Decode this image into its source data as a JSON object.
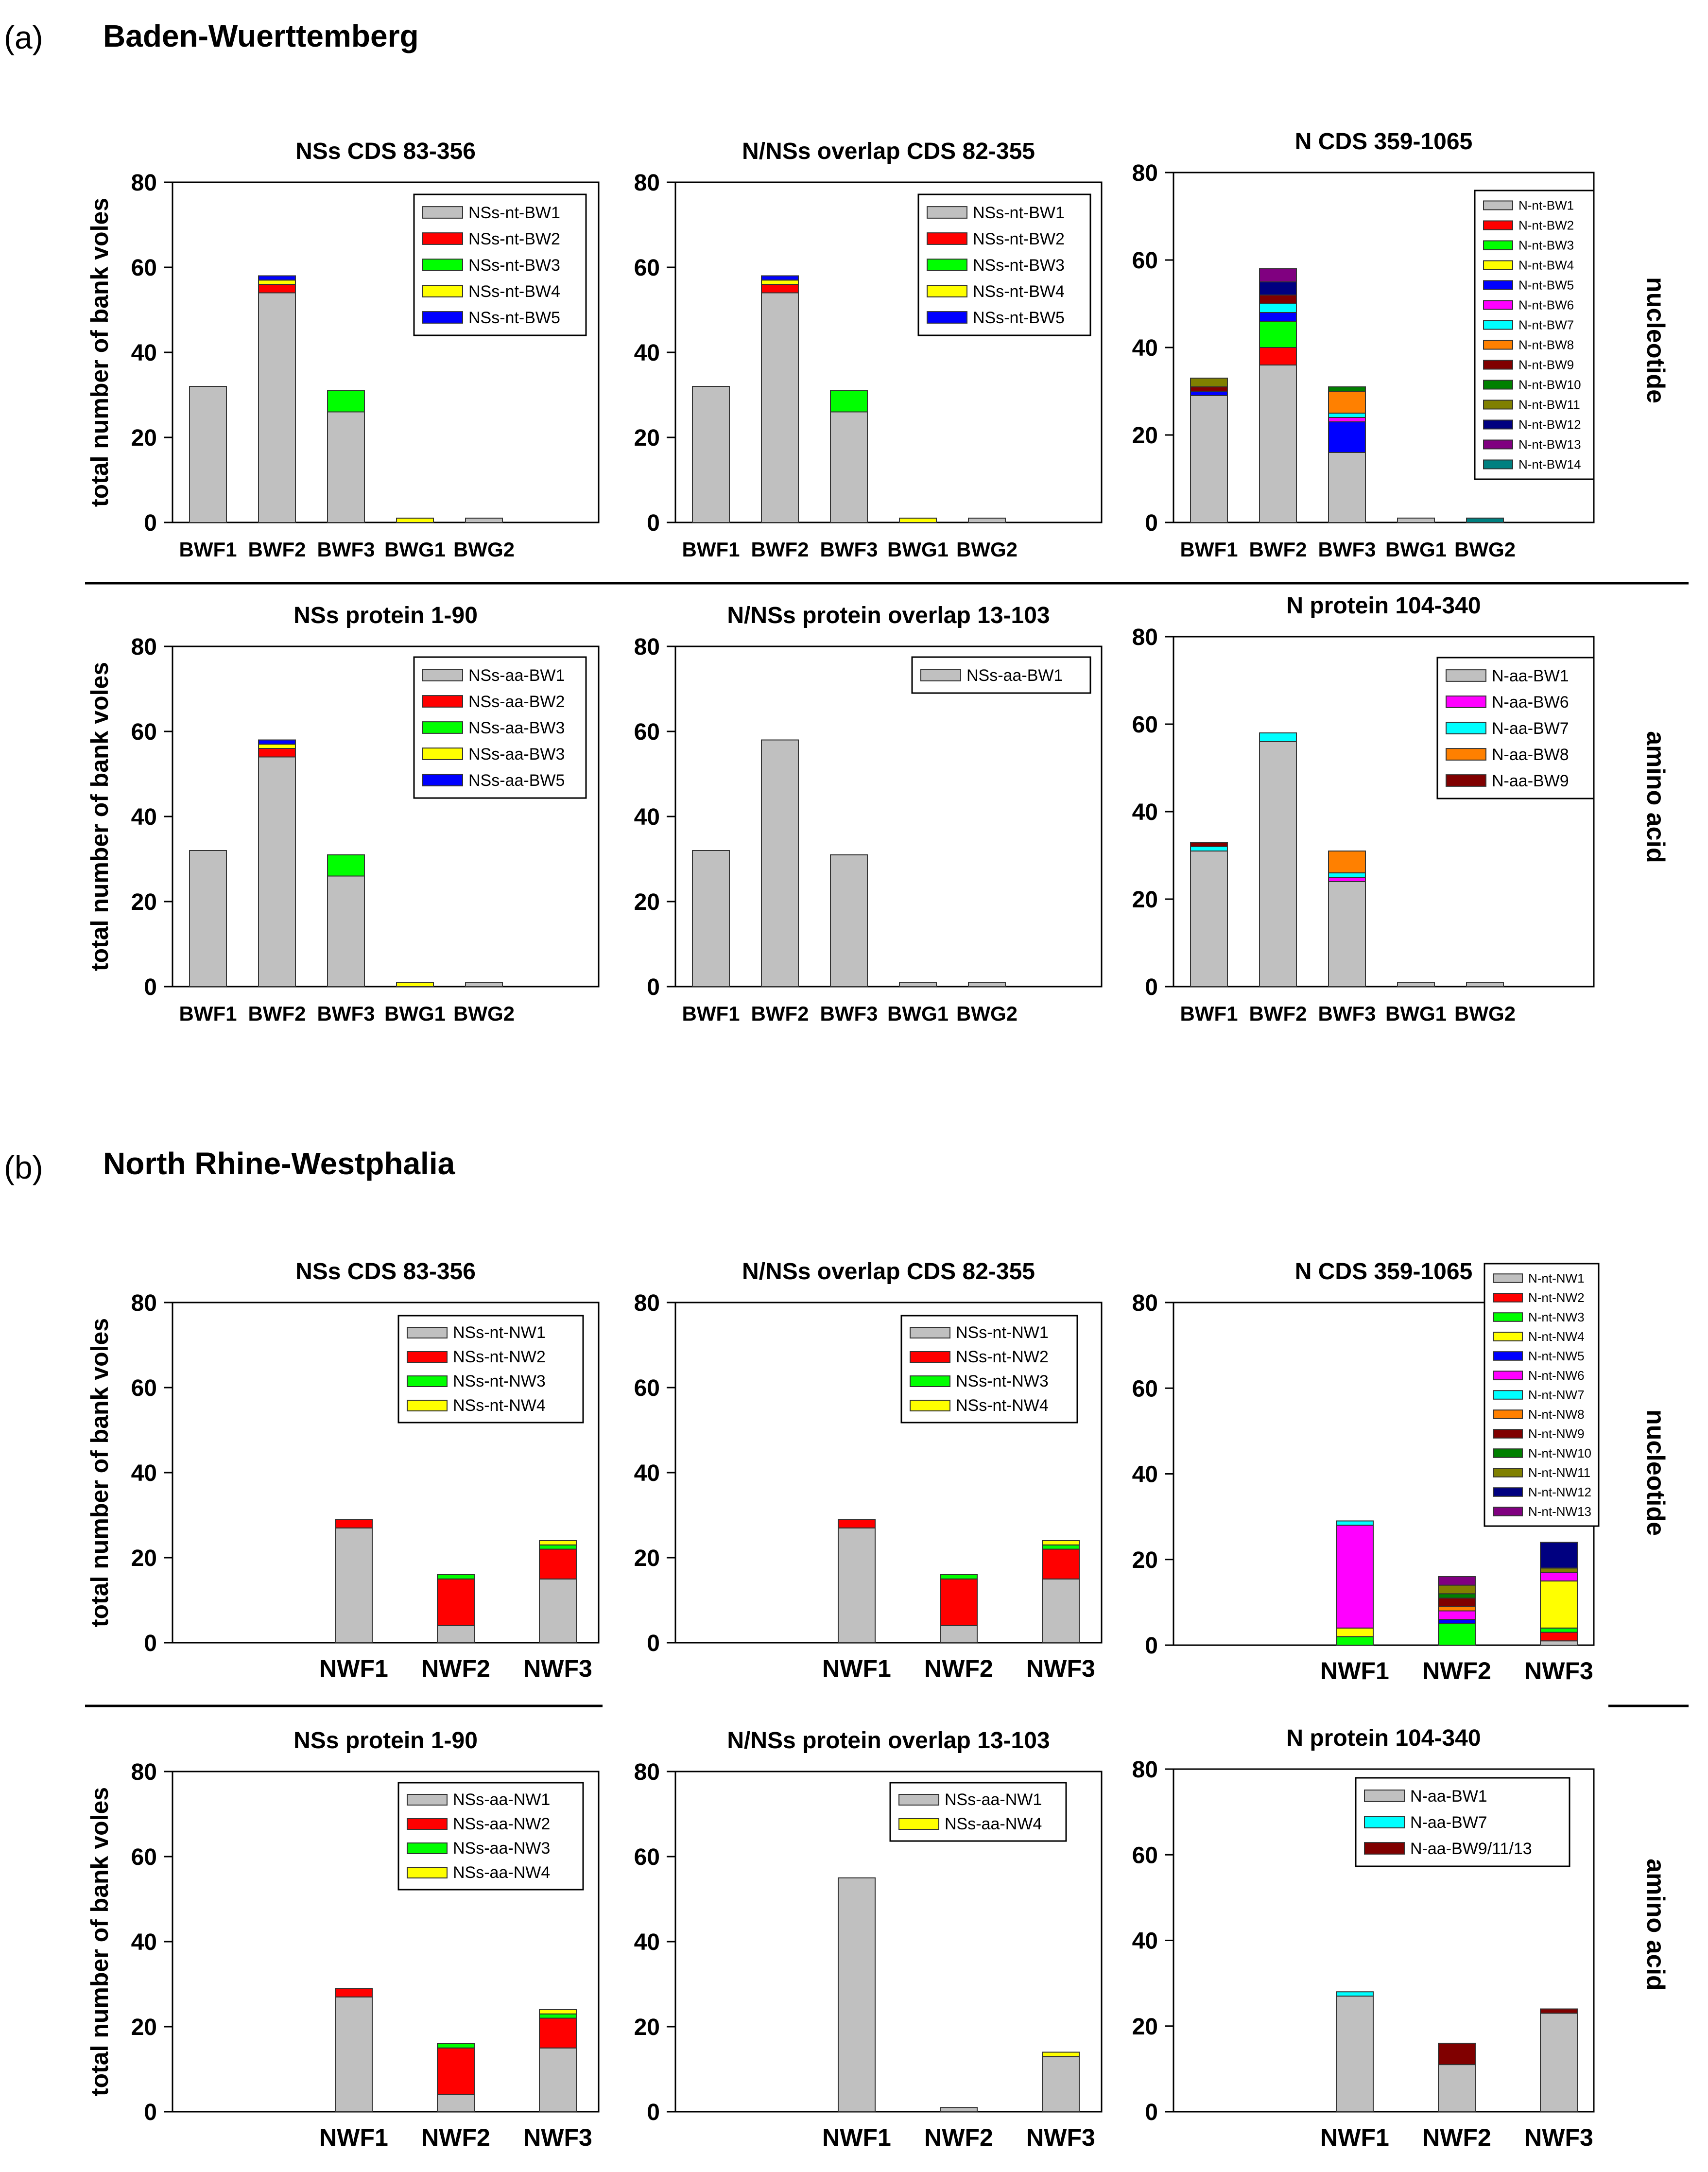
{
  "panels": [
    {
      "label": "(a)",
      "region": "Baden-Wuerttemberg"
    },
    {
      "label": "(b)",
      "region": "North Rhine-Westphalia"
    }
  ],
  "row_labels": [
    "nucleotide",
    "amino acid",
    "nucleotide",
    "amino acid"
  ],
  "y_axis_label": "total number of bank voles",
  "colors": {
    "grey": "#c0c0c0",
    "red": "#ff0000",
    "green": "#00ff00",
    "yellow": "#ffff00",
    "blue": "#0000ff",
    "magenta": "#ff00ff",
    "cyan": "#00ffff",
    "orange": "#ff8000",
    "darkred": "#800000",
    "darkgreen": "#008000",
    "olive": "#808000",
    "navy": "#000080",
    "purple": "#800080",
    "teal": "#008080"
  },
  "chart_data": [
    {
      "type": "bar",
      "stacked": true,
      "title": "NSs CDS 83-356",
      "ylabel": "total number of bank voles",
      "ylim": [
        0,
        80
      ],
      "yticks": [
        0,
        20,
        40,
        60,
        80
      ],
      "legend_position": "top-right",
      "categories": [
        "BWF1",
        "BWF2",
        "BWF3",
        "BWG1",
        "BWG2"
      ],
      "series": [
        {
          "name": "NSs-nt-BW1",
          "color": "grey",
          "values": [
            32,
            54,
            26,
            0,
            1
          ]
        },
        {
          "name": "NSs-nt-BW2",
          "color": "red",
          "values": [
            0,
            2,
            0,
            0,
            0
          ]
        },
        {
          "name": "NSs-nt-BW3",
          "color": "green",
          "values": [
            0,
            0,
            5,
            0,
            0
          ]
        },
        {
          "name": "NSs-nt-BW4",
          "color": "yellow",
          "values": [
            0,
            1,
            0,
            1,
            0
          ]
        },
        {
          "name": "NSs-nt-BW5",
          "color": "blue",
          "values": [
            0,
            1,
            0,
            0,
            0
          ]
        }
      ]
    },
    {
      "type": "bar",
      "stacked": true,
      "title": "N/NSs overlap CDS 82-355",
      "ylabel": "",
      "ylim": [
        0,
        80
      ],
      "yticks": [
        0,
        20,
        40,
        60,
        80
      ],
      "legend_position": "top-right",
      "categories": [
        "BWF1",
        "BWF2",
        "BWF3",
        "BWG1",
        "BWG2"
      ],
      "series": [
        {
          "name": "NSs-nt-BW1",
          "color": "grey",
          "values": [
            32,
            54,
            26,
            0,
            1
          ]
        },
        {
          "name": "NSs-nt-BW2",
          "color": "red",
          "values": [
            0,
            2,
            0,
            0,
            0
          ]
        },
        {
          "name": "NSs-nt-BW3",
          "color": "green",
          "values": [
            0,
            0,
            5,
            0,
            0
          ]
        },
        {
          "name": "NSs-nt-BW4",
          "color": "yellow",
          "values": [
            0,
            1,
            0,
            1,
            0
          ]
        },
        {
          "name": "NSs-nt-BW5",
          "color": "blue",
          "values": [
            0,
            1,
            0,
            0,
            0
          ]
        }
      ]
    },
    {
      "type": "bar",
      "stacked": true,
      "title": "N CDS 359-1065",
      "ylabel": "",
      "ylim": [
        0,
        80
      ],
      "yticks": [
        0,
        20,
        40,
        60,
        80
      ],
      "legend_position": "top-right",
      "categories": [
        "BWF1",
        "BWF2",
        "BWF3",
        "BWG1",
        "BWG2"
      ],
      "series": [
        {
          "name": "N-nt-BW1",
          "color": "grey",
          "values": [
            29,
            36,
            16,
            1,
            0
          ]
        },
        {
          "name": "N-nt-BW2",
          "color": "red",
          "values": [
            0,
            4,
            0,
            0,
            0
          ]
        },
        {
          "name": "N-nt-BW3",
          "color": "green",
          "values": [
            0,
            6,
            0,
            0,
            0
          ]
        },
        {
          "name": "N-nt-BW4",
          "color": "yellow",
          "values": [
            0,
            0,
            0,
            0,
            0
          ]
        },
        {
          "name": "N-nt-BW5",
          "color": "blue",
          "values": [
            1,
            2,
            7,
            0,
            0
          ]
        },
        {
          "name": "N-nt-BW6",
          "color": "magenta",
          "values": [
            0,
            0,
            1,
            0,
            0
          ]
        },
        {
          "name": "N-nt-BW7",
          "color": "cyan",
          "values": [
            0,
            2,
            1,
            0,
            0
          ]
        },
        {
          "name": "N-nt-BW8",
          "color": "orange",
          "values": [
            0,
            0,
            5,
            0,
            0
          ]
        },
        {
          "name": "N-nt-BW9",
          "color": "darkred",
          "values": [
            1,
            2,
            0,
            0,
            0
          ]
        },
        {
          "name": "N-nt-BW10",
          "color": "darkgreen",
          "values": [
            0,
            0,
            1,
            0,
            0
          ]
        },
        {
          "name": "N-nt-BW11",
          "color": "olive",
          "values": [
            2,
            0,
            0,
            0,
            0
          ]
        },
        {
          "name": "N-nt-BW12",
          "color": "navy",
          "values": [
            0,
            3,
            0,
            0,
            0
          ]
        },
        {
          "name": "N-nt-BW13",
          "color": "purple",
          "values": [
            0,
            3,
            0,
            0,
            0
          ]
        },
        {
          "name": "N-nt-BW14",
          "color": "teal",
          "values": [
            0,
            0,
            0,
            0,
            1
          ]
        }
      ]
    },
    {
      "type": "bar",
      "stacked": true,
      "title": "NSs protein 1-90",
      "ylabel": "total number of bank voles",
      "ylim": [
        0,
        80
      ],
      "yticks": [
        0,
        20,
        40,
        60,
        80
      ],
      "legend_position": "top-right",
      "categories": [
        "BWF1",
        "BWF2",
        "BWF3",
        "BWG1",
        "BWG2"
      ],
      "series": [
        {
          "name": "NSs-aa-BW1",
          "color": "grey",
          "values": [
            32,
            54,
            26,
            0,
            1
          ]
        },
        {
          "name": "NSs-aa-BW2",
          "color": "red",
          "values": [
            0,
            2,
            0,
            0,
            0
          ]
        },
        {
          "name": "NSs-aa-BW3",
          "color": "green",
          "values": [
            0,
            0,
            5,
            0,
            0
          ]
        },
        {
          "name": "NSs-aa-BW3",
          "color": "yellow",
          "values": [
            0,
            1,
            0,
            1,
            0
          ]
        },
        {
          "name": "NSs-aa-BW5",
          "color": "blue",
          "values": [
            0,
            1,
            0,
            0,
            0
          ]
        }
      ]
    },
    {
      "type": "bar",
      "stacked": true,
      "title": "N/NSs protein overlap 13-103",
      "ylabel": "",
      "ylim": [
        0,
        80
      ],
      "yticks": [
        0,
        20,
        40,
        60,
        80
      ],
      "legend_position": "top-right",
      "categories": [
        "BWF1",
        "BWF2",
        "BWF3",
        "BWG1",
        "BWG2"
      ],
      "series": [
        {
          "name": "NSs-aa-BW1",
          "color": "grey",
          "values": [
            32,
            58,
            31,
            1,
            1
          ]
        }
      ]
    },
    {
      "type": "bar",
      "stacked": true,
      "title": "N protein 104-340",
      "ylabel": "",
      "ylim": [
        0,
        80
      ],
      "yticks": [
        0,
        20,
        40,
        60,
        80
      ],
      "legend_position": "top-right",
      "categories": [
        "BWF1",
        "BWF2",
        "BWF3",
        "BWG1",
        "BWG2"
      ],
      "series": [
        {
          "name": "N-aa-BW1",
          "color": "grey",
          "values": [
            31,
            56,
            24,
            1,
            1
          ]
        },
        {
          "name": "N-aa-BW6",
          "color": "magenta",
          "values": [
            0,
            0,
            1,
            0,
            0
          ]
        },
        {
          "name": "N-aa-BW7",
          "color": "cyan",
          "values": [
            1,
            2,
            1,
            0,
            0
          ]
        },
        {
          "name": "N-aa-BW8",
          "color": "orange",
          "values": [
            0,
            0,
            5,
            0,
            0
          ]
        },
        {
          "name": "N-aa-BW9",
          "color": "darkred",
          "values": [
            1,
            0,
            0,
            0,
            0
          ]
        }
      ]
    },
    {
      "type": "bar",
      "stacked": true,
      "title": "NSs CDS 83-356",
      "ylabel": "total number of bank voles",
      "ylim": [
        0,
        80
      ],
      "yticks": [
        0,
        20,
        40,
        60,
        80
      ],
      "legend_position": "top-right",
      "categories": [
        "NWF1",
        "NWF2",
        "NWF3"
      ],
      "series": [
        {
          "name": "NSs-nt-NW1",
          "color": "grey",
          "values": [
            27,
            4,
            15
          ]
        },
        {
          "name": "NSs-nt-NW2",
          "color": "red",
          "values": [
            2,
            11,
            7
          ]
        },
        {
          "name": "NSs-nt-NW3",
          "color": "green",
          "values": [
            0,
            1,
            1
          ]
        },
        {
          "name": "NSs-nt-NW4",
          "color": "yellow",
          "values": [
            0,
            0,
            1
          ]
        }
      ]
    },
    {
      "type": "bar",
      "stacked": true,
      "title": "N/NSs overlap CDS 82-355",
      "ylabel": "",
      "ylim": [
        0,
        80
      ],
      "yticks": [
        0,
        20,
        40,
        60,
        80
      ],
      "legend_position": "top-right",
      "categories": [
        "NWF1",
        "NWF2",
        "NWF3"
      ],
      "series": [
        {
          "name": "NSs-nt-NW1",
          "color": "grey",
          "values": [
            27,
            4,
            15
          ]
        },
        {
          "name": "NSs-nt-NW2",
          "color": "red",
          "values": [
            2,
            11,
            7
          ]
        },
        {
          "name": "NSs-nt-NW3",
          "color": "green",
          "values": [
            0,
            1,
            1
          ]
        },
        {
          "name": "NSs-nt-NW4",
          "color": "yellow",
          "values": [
            0,
            0,
            1
          ]
        }
      ]
    },
    {
      "type": "bar",
      "stacked": true,
      "title": "N CDS 359-1065",
      "ylabel": "",
      "ylim": [
        0,
        80
      ],
      "yticks": [
        0,
        20,
        40,
        60,
        80
      ],
      "legend_position": "top-right",
      "categories": [
        "NWF1",
        "NWF2",
        "NWF3"
      ],
      "series": [
        {
          "name": "N-nt-NW1",
          "color": "grey",
          "values": [
            0,
            0,
            1
          ]
        },
        {
          "name": "N-nt-NW2",
          "color": "red",
          "values": [
            0,
            0,
            2
          ]
        },
        {
          "name": "N-nt-NW3",
          "color": "green",
          "values": [
            2,
            5,
            1
          ]
        },
        {
          "name": "N-nt-NW4",
          "color": "yellow",
          "values": [
            2,
            0,
            11
          ]
        },
        {
          "name": "N-nt-NW5",
          "color": "blue",
          "values": [
            0,
            1,
            0
          ]
        },
        {
          "name": "N-nt-NW6",
          "color": "magenta",
          "values": [
            24,
            2,
            2
          ]
        },
        {
          "name": "N-nt-NW7",
          "color": "cyan",
          "values": [
            1,
            0,
            0
          ]
        },
        {
          "name": "N-nt-NW8",
          "color": "orange",
          "values": [
            0,
            1,
            0
          ]
        },
        {
          "name": "N-nt-NW9",
          "color": "darkred",
          "values": [
            0,
            2,
            0
          ]
        },
        {
          "name": "N-nt-NW10",
          "color": "darkgreen",
          "values": [
            0,
            1,
            0
          ]
        },
        {
          "name": "N-nt-NW11",
          "color": "olive",
          "values": [
            0,
            2,
            1
          ]
        },
        {
          "name": "N-nt-NW12",
          "color": "navy",
          "values": [
            0,
            0,
            6
          ]
        },
        {
          "name": "N-nt-NW13",
          "color": "purple",
          "values": [
            0,
            2,
            0
          ]
        }
      ]
    },
    {
      "type": "bar",
      "stacked": true,
      "title": "NSs protein 1-90",
      "ylabel": "total number of bank voles",
      "ylim": [
        0,
        80
      ],
      "yticks": [
        0,
        20,
        40,
        60,
        80
      ],
      "legend_position": "top-right",
      "categories": [
        "NWF1",
        "NWF2",
        "NWF3"
      ],
      "series": [
        {
          "name": "NSs-aa-NW1",
          "color": "grey",
          "values": [
            27,
            4,
            15
          ]
        },
        {
          "name": "NSs-aa-NW2",
          "color": "red",
          "values": [
            2,
            11,
            7
          ]
        },
        {
          "name": "NSs-aa-NW3",
          "color": "green",
          "values": [
            0,
            1,
            1
          ]
        },
        {
          "name": "NSs-aa-NW4",
          "color": "yellow",
          "values": [
            0,
            0,
            1
          ]
        }
      ]
    },
    {
      "type": "bar",
      "stacked": true,
      "title": "N/NSs protein overlap 13-103",
      "ylabel": "",
      "ylim": [
        0,
        80
      ],
      "yticks": [
        0,
        20,
        40,
        60,
        80
      ],
      "legend_position": "top-right",
      "categories": [
        "NWF1",
        "NWF2",
        "NWF3"
      ],
      "series": [
        {
          "name": "NSs-aa-NW1",
          "color": "grey",
          "values": [
            55,
            1,
            13
          ]
        },
        {
          "name": "NSs-aa-NW4",
          "color": "yellow",
          "values": [
            0,
            0,
            1
          ]
        }
      ]
    },
    {
      "type": "bar",
      "stacked": true,
      "title": "N protein 104-340",
      "ylabel": "",
      "ylim": [
        0,
        80
      ],
      "yticks": [
        0,
        20,
        40,
        60,
        80
      ],
      "legend_position": "top-right",
      "categories": [
        "NWF1",
        "NWF2",
        "NWF3"
      ],
      "series": [
        {
          "name": "N-aa-BW1",
          "color": "grey",
          "values": [
            27,
            11,
            23
          ]
        },
        {
          "name": "N-aa-BW7",
          "color": "cyan",
          "values": [
            1,
            0,
            0
          ]
        },
        {
          "name": "N-aa-BW9/11/13",
          "color": "darkred",
          "values": [
            0,
            5,
            1
          ]
        }
      ]
    }
  ]
}
